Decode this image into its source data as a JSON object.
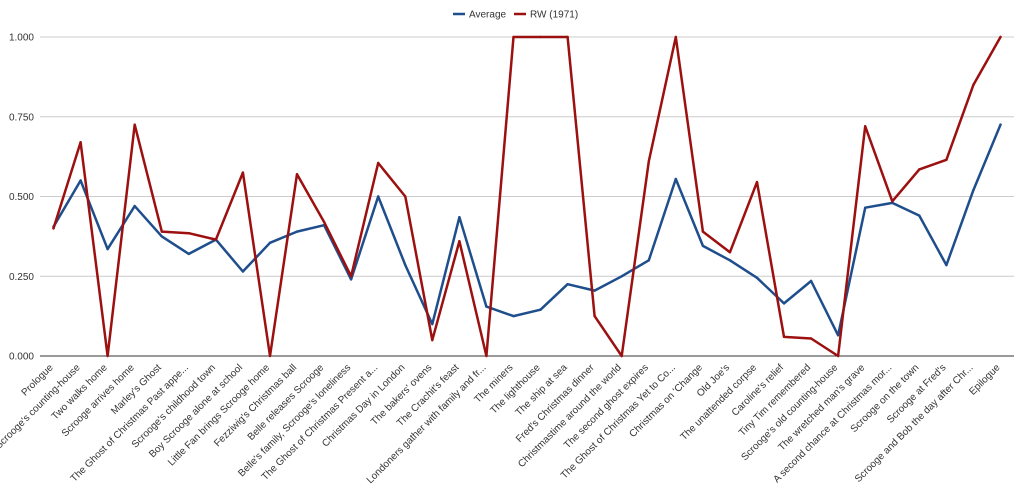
{
  "chart_data": {
    "type": "line",
    "title": "",
    "xlabel": "",
    "ylabel": "",
    "ylim": [
      0,
      1
    ],
    "yticks": [
      "0.000",
      "0.250",
      "0.500",
      "0.750",
      "1.000"
    ],
    "legend_position": "top-center",
    "grid": true,
    "categories": [
      "Prologue",
      "Scrooge's counting-house",
      "Two walks home",
      "Scrooge arrives home",
      "Marley's Ghost",
      "The Ghost of Christmas Past appe...",
      "Scrooge's childhood town",
      "Boy Scrooge alone at school",
      "Little Fan brings Scrooge home",
      "Fezziwig's Christmas ball",
      "Belle releases Scrooge",
      "Belle's family, Scrooge's loneliness",
      "The Ghost of Christmas Present a...",
      "Christmas Day in London",
      "The bakers' ovens",
      "The Crachit's feast",
      "Londoners gather with family and fr...",
      "The miners",
      "The lighthouse",
      "The ship at sea",
      "Fred's Christmas dinner",
      "Christmastime around the world",
      "The second ghost expires",
      "The Ghost of Christmas Yet to Co...",
      "Christmas on 'Change",
      "Old Joe's",
      "The unattended corpse",
      "Caroline's relief",
      "Tiny Tim remembered",
      "Scrooge's old counting-house",
      "The wretched man's grave",
      "A second chance at Christmas mor...",
      "Scrooge on the town",
      "Scrooge at Fred's",
      "Scrooge and Bob the day after Chr...",
      "Epilogue"
    ],
    "series": [
      {
        "name": "Average",
        "color": "#1f4e8c",
        "values": [
          0.405,
          0.55,
          0.335,
          0.47,
          0.375,
          0.32,
          0.365,
          0.265,
          0.355,
          0.39,
          0.41,
          0.24,
          0.5,
          0.285,
          0.1,
          0.435,
          0.155,
          0.125,
          0.145,
          0.225,
          0.205,
          0.25,
          0.3,
          0.555,
          0.345,
          0.3,
          0.245,
          0.165,
          0.235,
          0.065,
          0.465,
          0.48,
          0.44,
          0.285,
          0.52,
          0.725
        ]
      },
      {
        "name": "RW (1971)",
        "color": "#9c1010",
        "values": [
          0.4,
          0.67,
          0.0,
          0.725,
          0.39,
          0.385,
          0.365,
          0.575,
          0.0,
          0.57,
          0.42,
          0.25,
          0.605,
          0.5,
          0.05,
          0.36,
          0.0,
          1.0,
          1.0,
          1.0,
          0.125,
          0.0,
          0.61,
          1.0,
          0.39,
          0.325,
          0.545,
          0.06,
          0.055,
          0.0,
          0.72,
          0.485,
          0.585,
          0.615,
          0.85,
          1.0
        ]
      }
    ]
  }
}
